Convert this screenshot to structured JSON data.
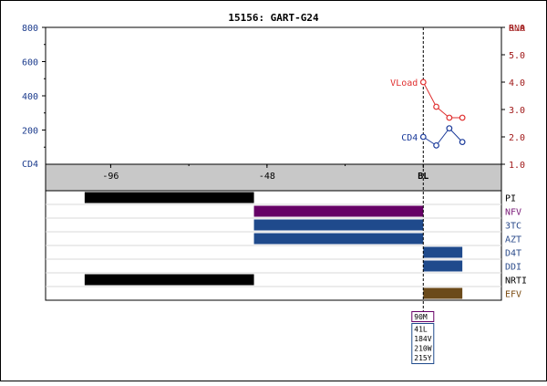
{
  "chart_data": {
    "type": "line",
    "title": "15156: GART-G24",
    "x_axis": {
      "ticks": [
        {
          "label": "-96",
          "value": -96
        },
        {
          "label": "-48",
          "value": -48
        },
        {
          "label": "BL",
          "value": 0
        }
      ],
      "range": [
        -116,
        24
      ],
      "baseline_value": 0
    },
    "left_axis": {
      "label": "CD4",
      "range": [
        0,
        800
      ],
      "tick_values": [
        200,
        400,
        600,
        800
      ],
      "tick_labels": [
        "200",
        "400",
        "600",
        "800"
      ],
      "color": "#1a3a8c"
    },
    "right_axis": {
      "label": "RNA",
      "range": [
        1.0,
        6.0
      ],
      "tick_values": [
        1.0,
        2.0,
        3.0,
        4.0,
        5.0,
        6.0
      ],
      "tick_labels": [
        "1.0",
        "2.0",
        "3.0",
        "4.0",
        "5.0",
        "6.0"
      ],
      "color": "#a01818"
    },
    "series": [
      {
        "name": "VLoad",
        "axis": "right",
        "color": "#e03030",
        "points": [
          {
            "x": 0,
            "y": 4.0
          },
          {
            "x": 4,
            "y": 3.1
          },
          {
            "x": 8,
            "y": 2.7
          },
          {
            "x": 12,
            "y": 2.7
          }
        ]
      },
      {
        "name": "CD4",
        "axis": "left",
        "color": "#1a3a9a",
        "points": [
          {
            "x": 0,
            "y": 160
          },
          {
            "x": 4,
            "y": 110
          },
          {
            "x": 8,
            "y": 210
          },
          {
            "x": 12,
            "y": 130
          }
        ]
      }
    ],
    "treatments": [
      {
        "label": "PI",
        "color": "#000000",
        "bars": [
          {
            "start": -104,
            "end": -52,
            "fill": "#000000"
          }
        ]
      },
      {
        "label": "NFV",
        "color": "#7a1a78",
        "bars": [
          {
            "start": -52,
            "end": 0,
            "fill": "#660066"
          }
        ]
      },
      {
        "label": "3TC",
        "color": "#2a4a8a",
        "bars": [
          {
            "start": -52,
            "end": 0,
            "fill": "#1f4a8c"
          }
        ]
      },
      {
        "label": "AZT",
        "color": "#2a4a8a",
        "bars": [
          {
            "start": -52,
            "end": 0,
            "fill": "#1f4a8c"
          }
        ]
      },
      {
        "label": "D4T",
        "color": "#2a4a8a",
        "bars": [
          {
            "start": 0,
            "end": 12,
            "fill": "#1f4a8c"
          }
        ]
      },
      {
        "label": "DDI",
        "color": "#2a4a8a",
        "bars": [
          {
            "start": 0,
            "end": 12,
            "fill": "#1f4a8c"
          }
        ]
      },
      {
        "label": "NRTI",
        "color": "#000000",
        "bars": [
          {
            "start": -104,
            "end": -52,
            "fill": "#000000"
          }
        ]
      },
      {
        "label": "EFV",
        "color": "#7a4a10",
        "bars": [
          {
            "start": 0,
            "end": 12,
            "fill": "#6b4a1a"
          }
        ]
      }
    ],
    "mutations": [
      {
        "label": "90M",
        "border": "#660066"
      },
      {
        "lines": [
          "41L",
          "184V",
          "210W",
          "215Y"
        ],
        "border": "#1f4a8c"
      }
    ]
  }
}
